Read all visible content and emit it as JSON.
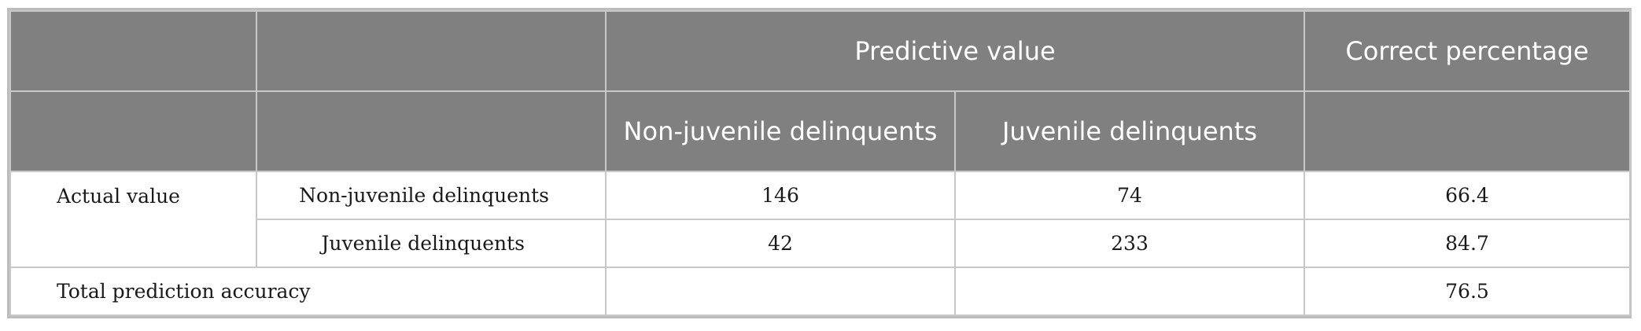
{
  "table": {
    "header_row1": {
      "col1": "",
      "col2": "",
      "predictive_value": "Predictive value",
      "correct_percentage": "Correct percentage"
    },
    "header_row2": {
      "col1": "",
      "col2": "",
      "non_juvenile": "Non-juvenile delinquents",
      "juvenile": "Juvenile delinquents",
      "col5": ""
    },
    "rows": [
      {
        "group": "Actual value",
        "category": "Non-juvenile delinquents",
        "pred_non_juvenile": "146",
        "pred_juvenile": "74",
        "correct_pct": "66.4"
      },
      {
        "group": "",
        "category": "Juvenile delinquents",
        "pred_non_juvenile": "42",
        "pred_juvenile": "233",
        "correct_pct": "84.7"
      }
    ],
    "total_row": {
      "label": "Total prediction accuracy",
      "pred_non_juvenile": "",
      "pred_juvenile": "",
      "correct_pct": "76.5"
    }
  }
}
